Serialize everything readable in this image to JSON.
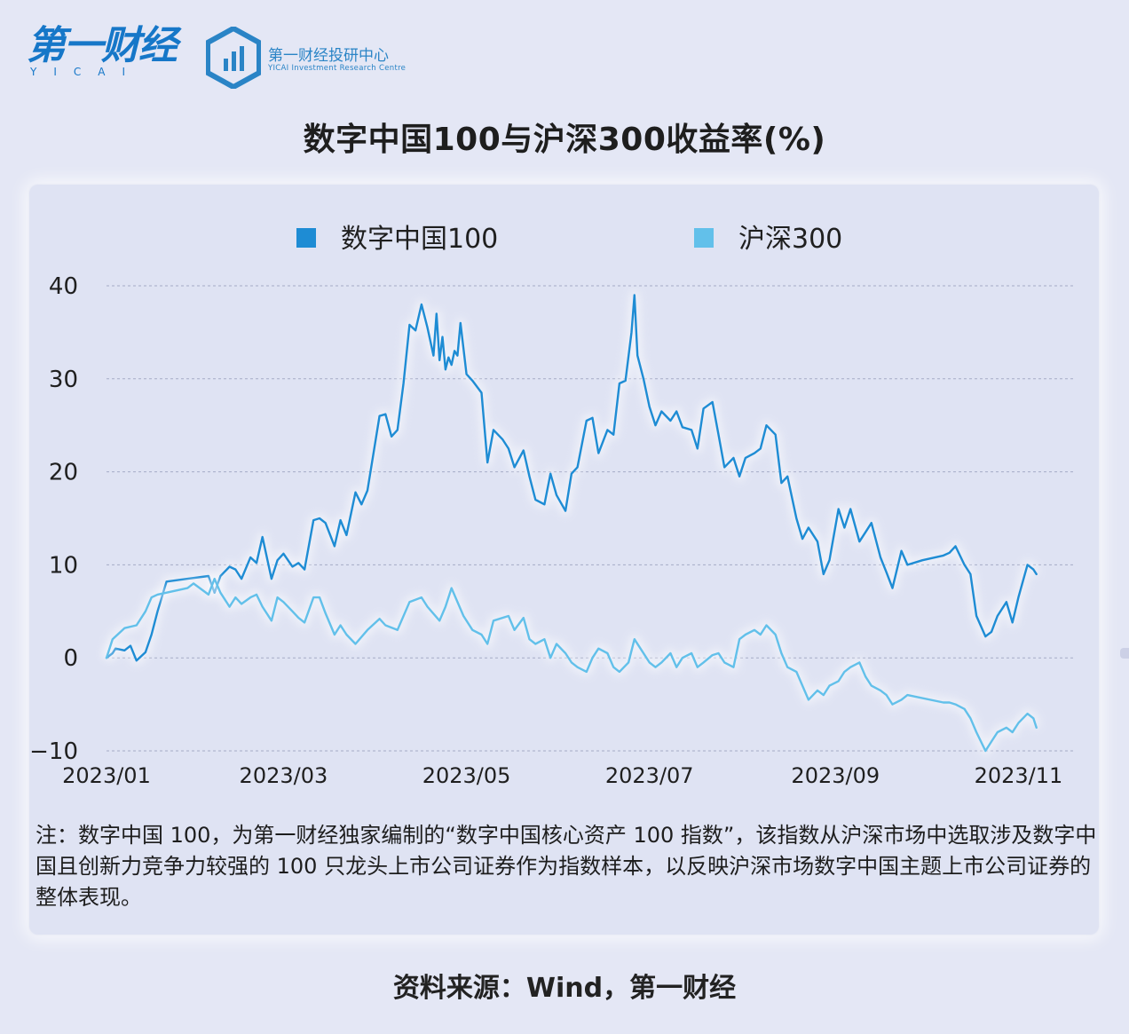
{
  "logo_main": {
    "text": "第一财经",
    "sub": "YICAI"
  },
  "logo_research": {
    "cn": "第一财经投研中心",
    "en": "YICAI Investment Research Centre"
  },
  "title": "数字中国100与沪深300收益率(%)",
  "colors": {
    "series1": "#1e8cd4",
    "series2": "#62c0ea",
    "grid": "#a5abc6",
    "background": "#e4e7f5"
  },
  "chart_data": {
    "type": "line",
    "title": "数字中国100与沪深300收益率(%)",
    "legend_position": "top",
    "grid": true,
    "ylim": [
      -10,
      40
    ],
    "yticks": [
      40,
      30,
      20,
      10,
      0,
      -10
    ],
    "ytick_labels": [
      "40",
      "30",
      "20",
      "10",
      "0",
      "−10"
    ],
    "xlim": [
      "2023-01-03",
      "2023-11-15"
    ],
    "xtick_labels": [
      "2023/01",
      "2023/03",
      "2023/05",
      "2023/07",
      "2023/09",
      "2023/11"
    ],
    "xtick_dates": [
      "2023-01-03",
      "2023-03-03",
      "2023-05-03",
      "2023-07-03",
      "2023-09-03",
      "2023-11-03"
    ],
    "series": [
      {
        "name": "数字中国100",
        "points": [
          [
            "2023-01-03",
            0.0
          ],
          [
            "2023-01-05",
            0.5
          ],
          [
            "2023-01-06",
            1.0
          ],
          [
            "2023-01-09",
            0.8
          ],
          [
            "2023-01-11",
            1.3
          ],
          [
            "2023-01-13",
            -0.3
          ],
          [
            "2023-01-16",
            0.6
          ],
          [
            "2023-01-18",
            2.5
          ],
          [
            "2023-01-20",
            5.0
          ],
          [
            "2023-01-23",
            8.2
          ],
          [
            "2023-01-30",
            8.5
          ],
          [
            "2023-02-06",
            8.8
          ],
          [
            "2023-02-08",
            7.0
          ],
          [
            "2023-02-10",
            8.8
          ],
          [
            "2023-02-13",
            9.8
          ],
          [
            "2023-02-15",
            9.5
          ],
          [
            "2023-02-17",
            8.5
          ],
          [
            "2023-02-20",
            10.8
          ],
          [
            "2023-02-22",
            10.2
          ],
          [
            "2023-02-24",
            13.0
          ],
          [
            "2023-02-27",
            8.5
          ],
          [
            "2023-03-01",
            10.5
          ],
          [
            "2023-03-03",
            11.2
          ],
          [
            "2023-03-06",
            9.8
          ],
          [
            "2023-03-08",
            10.2
          ],
          [
            "2023-03-10",
            9.5
          ],
          [
            "2023-03-13",
            14.8
          ],
          [
            "2023-03-15",
            15.0
          ],
          [
            "2023-03-17",
            14.5
          ],
          [
            "2023-03-20",
            12.0
          ],
          [
            "2023-03-22",
            14.8
          ],
          [
            "2023-03-24",
            13.2
          ],
          [
            "2023-03-27",
            17.8
          ],
          [
            "2023-03-29",
            16.5
          ],
          [
            "2023-03-31",
            18.0
          ],
          [
            "2023-04-04",
            26.0
          ],
          [
            "2023-04-06",
            26.2
          ],
          [
            "2023-04-08",
            23.8
          ],
          [
            "2023-04-10",
            24.5
          ],
          [
            "2023-04-12",
            29.5
          ],
          [
            "2023-04-14",
            35.8
          ],
          [
            "2023-04-16",
            35.2
          ],
          [
            "2023-04-18",
            38.0
          ],
          [
            "2023-04-20",
            35.5
          ],
          [
            "2023-04-22",
            32.5
          ],
          [
            "2023-04-23",
            37.0
          ],
          [
            "2023-04-24",
            32.0
          ],
          [
            "2023-04-25",
            34.5
          ],
          [
            "2023-04-26",
            31.0
          ],
          [
            "2023-04-27",
            32.3
          ],
          [
            "2023-04-28",
            31.5
          ],
          [
            "2023-04-29",
            33.0
          ],
          [
            "2023-04-30",
            32.5
          ],
          [
            "2023-05-01",
            36.0
          ],
          [
            "2023-05-03",
            30.5
          ],
          [
            "2023-05-05",
            29.8
          ],
          [
            "2023-05-08",
            28.5
          ],
          [
            "2023-05-10",
            21.0
          ],
          [
            "2023-05-12",
            24.5
          ],
          [
            "2023-05-15",
            23.5
          ],
          [
            "2023-05-17",
            22.5
          ],
          [
            "2023-05-19",
            20.5
          ],
          [
            "2023-05-22",
            22.3
          ],
          [
            "2023-05-24",
            19.5
          ],
          [
            "2023-05-26",
            17.0
          ],
          [
            "2023-05-29",
            16.5
          ],
          [
            "2023-05-31",
            19.8
          ],
          [
            "2023-06-02",
            17.5
          ],
          [
            "2023-06-05",
            15.8
          ],
          [
            "2023-06-07",
            19.8
          ],
          [
            "2023-06-09",
            20.5
          ],
          [
            "2023-06-12",
            25.5
          ],
          [
            "2023-06-14",
            25.8
          ],
          [
            "2023-06-16",
            22.0
          ],
          [
            "2023-06-19",
            24.5
          ],
          [
            "2023-06-21",
            24.0
          ],
          [
            "2023-06-23",
            29.5
          ],
          [
            "2023-06-25",
            29.8
          ],
          [
            "2023-06-27",
            35.0
          ],
          [
            "2023-06-28",
            39.0
          ],
          [
            "2023-06-29",
            32.5
          ],
          [
            "2023-07-01",
            30.0
          ],
          [
            "2023-07-03",
            27.0
          ],
          [
            "2023-07-05",
            25.0
          ],
          [
            "2023-07-07",
            26.5
          ],
          [
            "2023-07-10",
            25.5
          ],
          [
            "2023-07-12",
            26.5
          ],
          [
            "2023-07-14",
            24.8
          ],
          [
            "2023-07-17",
            24.5
          ],
          [
            "2023-07-19",
            22.5
          ],
          [
            "2023-07-21",
            26.8
          ],
          [
            "2023-07-24",
            27.5
          ],
          [
            "2023-07-26",
            24.0
          ],
          [
            "2023-07-28",
            20.5
          ],
          [
            "2023-07-31",
            21.5
          ],
          [
            "2023-08-02",
            19.5
          ],
          [
            "2023-08-04",
            21.5
          ],
          [
            "2023-08-07",
            22.0
          ],
          [
            "2023-08-09",
            22.5
          ],
          [
            "2023-08-11",
            25.0
          ],
          [
            "2023-08-14",
            24.0
          ],
          [
            "2023-08-16",
            18.8
          ],
          [
            "2023-08-18",
            19.5
          ],
          [
            "2023-08-21",
            15.0
          ],
          [
            "2023-08-23",
            12.8
          ],
          [
            "2023-08-25",
            14.0
          ],
          [
            "2023-08-28",
            12.5
          ],
          [
            "2023-08-30",
            9.0
          ],
          [
            "2023-09-01",
            10.5
          ],
          [
            "2023-09-04",
            16.0
          ],
          [
            "2023-09-06",
            14.0
          ],
          [
            "2023-09-08",
            16.0
          ],
          [
            "2023-09-11",
            12.5
          ],
          [
            "2023-09-13",
            13.5
          ],
          [
            "2023-09-15",
            14.5
          ],
          [
            "2023-09-18",
            10.8
          ],
          [
            "2023-09-20",
            9.2
          ],
          [
            "2023-09-22",
            7.5
          ],
          [
            "2023-09-25",
            11.5
          ],
          [
            "2023-09-27",
            10.0
          ],
          [
            "2023-10-02",
            10.5
          ],
          [
            "2023-10-09",
            11.0
          ],
          [
            "2023-10-11",
            11.3
          ],
          [
            "2023-10-13",
            12.0
          ],
          [
            "2023-10-16",
            10.0
          ],
          [
            "2023-10-18",
            9.0
          ],
          [
            "2023-10-20",
            4.5
          ],
          [
            "2023-10-23",
            2.3
          ],
          [
            "2023-10-25",
            2.8
          ],
          [
            "2023-10-27",
            4.5
          ],
          [
            "2023-10-30",
            6.0
          ],
          [
            "2023-11-01",
            3.8
          ],
          [
            "2023-11-03",
            6.5
          ],
          [
            "2023-11-06",
            10.0
          ],
          [
            "2023-11-08",
            9.5
          ],
          [
            "2023-11-09",
            9.0
          ]
        ]
      },
      {
        "name": "沪深300",
        "points": [
          [
            "2023-01-03",
            0.0
          ],
          [
            "2023-01-05",
            2.0
          ],
          [
            "2023-01-09",
            3.2
          ],
          [
            "2023-01-13",
            3.5
          ],
          [
            "2023-01-16",
            5.0
          ],
          [
            "2023-01-18",
            6.5
          ],
          [
            "2023-01-20",
            6.8
          ],
          [
            "2023-01-30",
            7.5
          ],
          [
            "2023-02-01",
            8.0
          ],
          [
            "2023-02-06",
            6.8
          ],
          [
            "2023-02-08",
            8.5
          ],
          [
            "2023-02-10",
            7.0
          ],
          [
            "2023-02-13",
            5.5
          ],
          [
            "2023-02-15",
            6.5
          ],
          [
            "2023-02-17",
            5.8
          ],
          [
            "2023-02-20",
            6.5
          ],
          [
            "2023-02-22",
            6.8
          ],
          [
            "2023-02-24",
            5.5
          ],
          [
            "2023-02-27",
            4.0
          ],
          [
            "2023-03-01",
            6.5
          ],
          [
            "2023-03-03",
            6.0
          ],
          [
            "2023-03-06",
            5.0
          ],
          [
            "2023-03-08",
            4.3
          ],
          [
            "2023-03-10",
            3.8
          ],
          [
            "2023-03-13",
            6.5
          ],
          [
            "2023-03-15",
            6.5
          ],
          [
            "2023-03-17",
            4.8
          ],
          [
            "2023-03-20",
            2.5
          ],
          [
            "2023-03-22",
            3.5
          ],
          [
            "2023-03-24",
            2.5
          ],
          [
            "2023-03-27",
            1.5
          ],
          [
            "2023-03-31",
            3.0
          ],
          [
            "2023-04-04",
            4.2
          ],
          [
            "2023-04-06",
            3.5
          ],
          [
            "2023-04-10",
            3.0
          ],
          [
            "2023-04-14",
            6.0
          ],
          [
            "2023-04-18",
            6.5
          ],
          [
            "2023-04-20",
            5.5
          ],
          [
            "2023-04-24",
            4.0
          ],
          [
            "2023-04-26",
            5.5
          ],
          [
            "2023-04-28",
            7.5
          ],
          [
            "2023-05-02",
            4.5
          ],
          [
            "2023-05-05",
            3.0
          ],
          [
            "2023-05-08",
            2.5
          ],
          [
            "2023-05-10",
            1.5
          ],
          [
            "2023-05-12",
            4.0
          ],
          [
            "2023-05-17",
            4.5
          ],
          [
            "2023-05-19",
            3.0
          ],
          [
            "2023-05-22",
            4.3
          ],
          [
            "2023-05-24",
            2.0
          ],
          [
            "2023-05-26",
            1.5
          ],
          [
            "2023-05-29",
            2.0
          ],
          [
            "2023-05-31",
            0.0
          ],
          [
            "2023-06-02",
            1.5
          ],
          [
            "2023-06-05",
            0.5
          ],
          [
            "2023-06-07",
            -0.5
          ],
          [
            "2023-06-09",
            -1.0
          ],
          [
            "2023-06-12",
            -1.5
          ],
          [
            "2023-06-14",
            0.0
          ],
          [
            "2023-06-16",
            1.0
          ],
          [
            "2023-06-19",
            0.5
          ],
          [
            "2023-06-21",
            -1.0
          ],
          [
            "2023-06-23",
            -1.5
          ],
          [
            "2023-06-26",
            -0.5
          ],
          [
            "2023-06-28",
            2.0
          ],
          [
            "2023-06-30",
            1.0
          ],
          [
            "2023-07-03",
            -0.5
          ],
          [
            "2023-07-05",
            -1.0
          ],
          [
            "2023-07-07",
            -0.5
          ],
          [
            "2023-07-10",
            0.5
          ],
          [
            "2023-07-12",
            -1.0
          ],
          [
            "2023-07-14",
            0.0
          ],
          [
            "2023-07-17",
            0.5
          ],
          [
            "2023-07-19",
            -1.0
          ],
          [
            "2023-07-21",
            -0.5
          ],
          [
            "2023-07-24",
            0.3
          ],
          [
            "2023-07-26",
            0.5
          ],
          [
            "2023-07-28",
            -0.5
          ],
          [
            "2023-07-31",
            -1.0
          ],
          [
            "2023-08-02",
            2.0
          ],
          [
            "2023-08-04",
            2.5
          ],
          [
            "2023-08-07",
            3.0
          ],
          [
            "2023-08-09",
            2.5
          ],
          [
            "2023-08-11",
            3.5
          ],
          [
            "2023-08-14",
            2.5
          ],
          [
            "2023-08-16",
            0.5
          ],
          [
            "2023-08-18",
            -1.0
          ],
          [
            "2023-08-21",
            -1.5
          ],
          [
            "2023-08-23",
            -3.0
          ],
          [
            "2023-08-25",
            -4.5
          ],
          [
            "2023-08-28",
            -3.5
          ],
          [
            "2023-08-30",
            -4.0
          ],
          [
            "2023-09-01",
            -3.0
          ],
          [
            "2023-09-04",
            -2.5
          ],
          [
            "2023-09-06",
            -1.5
          ],
          [
            "2023-09-08",
            -1.0
          ],
          [
            "2023-09-11",
            -0.5
          ],
          [
            "2023-09-13",
            -2.0
          ],
          [
            "2023-09-15",
            -3.0
          ],
          [
            "2023-09-18",
            -3.5
          ],
          [
            "2023-09-20",
            -4.0
          ],
          [
            "2023-09-22",
            -5.0
          ],
          [
            "2023-09-25",
            -4.5
          ],
          [
            "2023-09-27",
            -4.0
          ],
          [
            "2023-10-09",
            -4.8
          ],
          [
            "2023-10-11",
            -4.8
          ],
          [
            "2023-10-13",
            -5.0
          ],
          [
            "2023-10-16",
            -5.5
          ],
          [
            "2023-10-18",
            -6.5
          ],
          [
            "2023-10-20",
            -8.0
          ],
          [
            "2023-10-23",
            -10.0
          ],
          [
            "2023-10-25",
            -9.0
          ],
          [
            "2023-10-27",
            -8.0
          ],
          [
            "2023-10-30",
            -7.5
          ],
          [
            "2023-11-01",
            -8.0
          ],
          [
            "2023-11-03",
            -7.0
          ],
          [
            "2023-11-06",
            -6.0
          ],
          [
            "2023-11-08",
            -6.5
          ],
          [
            "2023-11-09",
            -7.5
          ]
        ]
      }
    ]
  },
  "note": "注：数字中国 100，为第一财经独家编制的“数字中国核心资产 100 指数”，该指数从沪深市场中选取涉及数字中国且创新力竞争力较强的 100 只龙头上市公司证券作为指数样本，以反映沪深市场数字中国主题上市公司证券的整体表现。",
  "source": "资料来源：Wind，第一财经"
}
